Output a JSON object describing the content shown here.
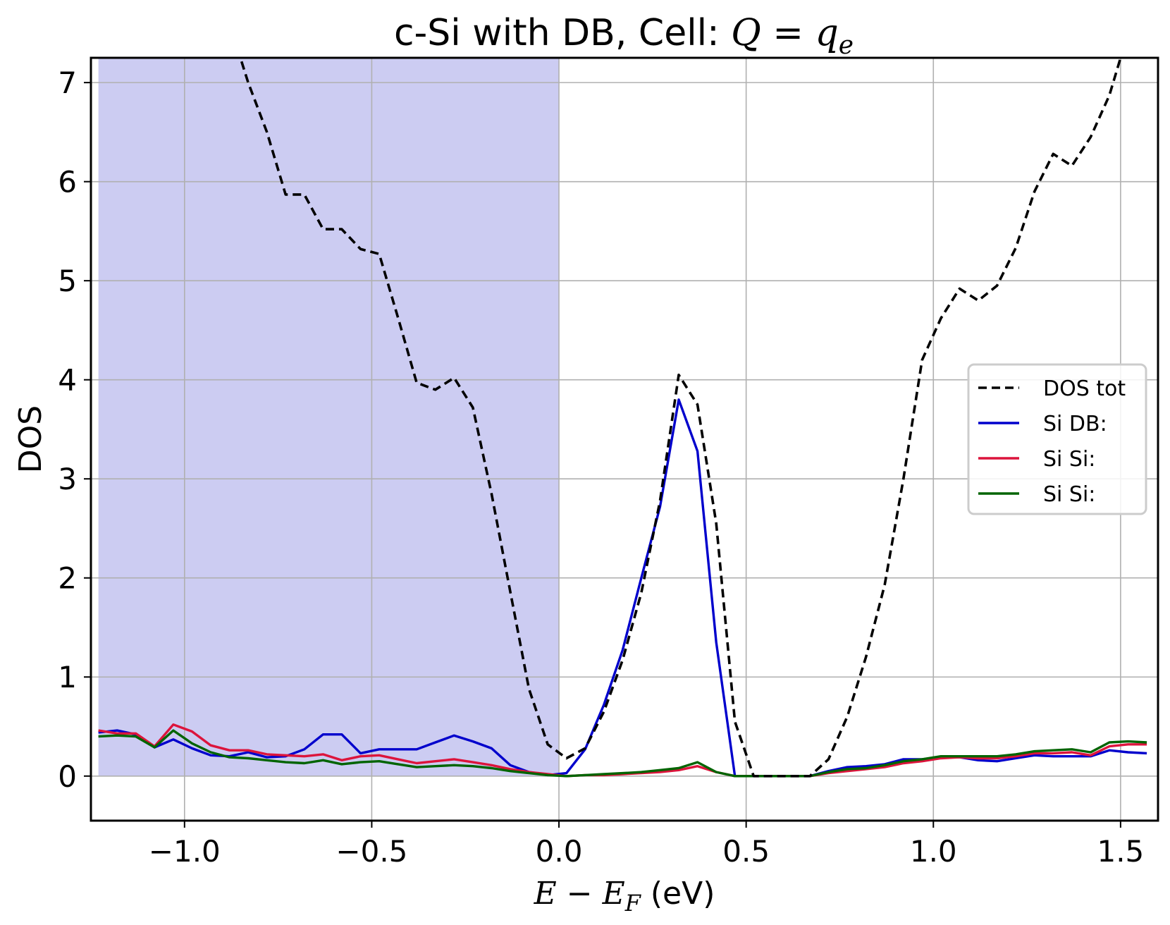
{
  "chart_data": {
    "type": "line",
    "title": {
      "prefix": "c-Si with DB, Cell: ",
      "math_lhs": "Q",
      "math_eq": " = ",
      "math_rhs": "q",
      "math_sub": "e"
    },
    "xlabel": {
      "E": "E",
      "minus": " − ",
      "EF": "E",
      "sub": "F",
      "unit": " (eV)"
    },
    "ylabel": "DOS",
    "xlim": [
      -1.25,
      1.6
    ],
    "ylim": [
      -0.45,
      7.25
    ],
    "x_ticks": [
      -1.0,
      -0.5,
      0.0,
      0.5,
      1.0,
      1.5
    ],
    "x_tick_labels": [
      "−1.0",
      "−0.5",
      "0.0",
      "0.5",
      "1.0",
      "1.5"
    ],
    "y_ticks": [
      0,
      1,
      2,
      3,
      4,
      5,
      6,
      7
    ],
    "y_tick_labels": [
      "0",
      "1",
      "2",
      "3",
      "4",
      "5",
      "6",
      "7"
    ],
    "grid": true,
    "legend_position": "center-right",
    "fill_region": {
      "x_start": -1.23,
      "x_end": 0.0,
      "color": "#ccccf2"
    },
    "series": [
      {
        "name": "DOS tot",
        "color": "#000000",
        "style": "dashed",
        "x": [
          -0.88,
          -0.83,
          -0.78,
          -0.73,
          -0.68,
          -0.63,
          -0.58,
          -0.53,
          -0.48,
          -0.43,
          -0.38,
          -0.33,
          -0.28,
          -0.23,
          -0.18,
          -0.13,
          -0.08,
          -0.03,
          0.02,
          0.07,
          0.12,
          0.17,
          0.22,
          0.27,
          0.32,
          0.37,
          0.42,
          0.47,
          0.52,
          0.57,
          0.62,
          0.67,
          0.72,
          0.77,
          0.82,
          0.87,
          0.92,
          0.97,
          1.02,
          1.07,
          1.12,
          1.17,
          1.22,
          1.27,
          1.32,
          1.37,
          1.42,
          1.47,
          1.5
        ],
        "y": [
          7.6,
          7.0,
          6.5,
          5.87,
          5.87,
          5.52,
          5.52,
          5.32,
          5.27,
          4.63,
          3.97,
          3.9,
          4.02,
          3.72,
          2.85,
          1.86,
          0.88,
          0.32,
          0.18,
          0.28,
          0.65,
          1.17,
          1.85,
          2.78,
          4.05,
          3.75,
          2.55,
          0.55,
          0.0,
          0.0,
          0.0,
          0.0,
          0.17,
          0.6,
          1.2,
          1.93,
          3.0,
          4.2,
          4.62,
          4.92,
          4.8,
          4.95,
          5.33,
          5.9,
          6.28,
          6.16,
          6.45,
          6.87,
          7.25
        ]
      },
      {
        "name": "Si DB:",
        "color": "#0000cc",
        "style": "solid",
        "x": [
          -1.23,
          -1.18,
          -1.13,
          -1.08,
          -1.03,
          -0.98,
          -0.93,
          -0.88,
          -0.83,
          -0.78,
          -0.73,
          -0.68,
          -0.63,
          -0.58,
          -0.53,
          -0.48,
          -0.43,
          -0.38,
          -0.33,
          -0.28,
          -0.23,
          -0.18,
          -0.13,
          -0.08,
          -0.03,
          0.02,
          0.07,
          0.12,
          0.17,
          0.22,
          0.27,
          0.32,
          0.37,
          0.42,
          0.47,
          0.52,
          0.57,
          0.62,
          0.67,
          0.72,
          0.77,
          0.82,
          0.87,
          0.92,
          0.97,
          1.02,
          1.07,
          1.12,
          1.17,
          1.22,
          1.27,
          1.32,
          1.37,
          1.42,
          1.47,
          1.52,
          1.57
        ],
        "y": [
          0.44,
          0.46,
          0.42,
          0.29,
          0.37,
          0.28,
          0.21,
          0.2,
          0.24,
          0.19,
          0.2,
          0.27,
          0.42,
          0.42,
          0.23,
          0.27,
          0.27,
          0.27,
          0.34,
          0.41,
          0.35,
          0.28,
          0.11,
          0.04,
          0.01,
          0.03,
          0.27,
          0.72,
          1.27,
          2.0,
          2.72,
          3.8,
          3.28,
          1.35,
          0.0,
          0.0,
          0.0,
          0.0,
          0.0,
          0.05,
          0.09,
          0.1,
          0.12,
          0.17,
          0.17,
          0.19,
          0.19,
          0.16,
          0.15,
          0.18,
          0.21,
          0.2,
          0.2,
          0.2,
          0.26,
          0.24,
          0.23
        ]
      },
      {
        "name": "Si Si:",
        "color": "#dc143c",
        "style": "solid",
        "x": [
          -1.23,
          -1.18,
          -1.13,
          -1.08,
          -1.03,
          -0.98,
          -0.93,
          -0.88,
          -0.83,
          -0.78,
          -0.73,
          -0.68,
          -0.63,
          -0.58,
          -0.53,
          -0.48,
          -0.43,
          -0.38,
          -0.33,
          -0.28,
          -0.23,
          -0.18,
          -0.13,
          -0.08,
          -0.03,
          0.02,
          0.07,
          0.12,
          0.17,
          0.22,
          0.27,
          0.32,
          0.37,
          0.42,
          0.47,
          0.52,
          0.57,
          0.62,
          0.67,
          0.72,
          0.77,
          0.82,
          0.87,
          0.92,
          0.97,
          1.02,
          1.07,
          1.12,
          1.17,
          1.22,
          1.27,
          1.32,
          1.37,
          1.42,
          1.47,
          1.52,
          1.57
        ],
        "y": [
          0.46,
          0.43,
          0.43,
          0.3,
          0.52,
          0.45,
          0.31,
          0.26,
          0.26,
          0.22,
          0.21,
          0.2,
          0.22,
          0.16,
          0.2,
          0.21,
          0.17,
          0.13,
          0.15,
          0.17,
          0.14,
          0.11,
          0.07,
          0.04,
          0.02,
          0.0,
          0.01,
          0.01,
          0.02,
          0.03,
          0.04,
          0.06,
          0.1,
          0.04,
          0.0,
          0.0,
          0.0,
          0.0,
          0.0,
          0.03,
          0.05,
          0.07,
          0.09,
          0.13,
          0.15,
          0.18,
          0.19,
          0.18,
          0.18,
          0.2,
          0.23,
          0.23,
          0.24,
          0.21,
          0.3,
          0.32,
          0.32
        ]
      },
      {
        "name": "Si Si:",
        "color": "#006400",
        "style": "solid",
        "x": [
          -1.23,
          -1.18,
          -1.13,
          -1.08,
          -1.03,
          -0.98,
          -0.93,
          -0.88,
          -0.83,
          -0.78,
          -0.73,
          -0.68,
          -0.63,
          -0.58,
          -0.53,
          -0.48,
          -0.43,
          -0.38,
          -0.33,
          -0.28,
          -0.23,
          -0.18,
          -0.13,
          -0.08,
          -0.03,
          0.02,
          0.07,
          0.12,
          0.17,
          0.22,
          0.27,
          0.32,
          0.37,
          0.42,
          0.47,
          0.52,
          0.57,
          0.62,
          0.67,
          0.72,
          0.77,
          0.82,
          0.87,
          0.92,
          0.97,
          1.02,
          1.07,
          1.12,
          1.17,
          1.22,
          1.27,
          1.32,
          1.37,
          1.42,
          1.47,
          1.52,
          1.57
        ],
        "y": [
          0.4,
          0.41,
          0.4,
          0.29,
          0.46,
          0.33,
          0.24,
          0.19,
          0.18,
          0.16,
          0.14,
          0.13,
          0.16,
          0.12,
          0.14,
          0.15,
          0.12,
          0.09,
          0.1,
          0.11,
          0.1,
          0.08,
          0.05,
          0.03,
          0.01,
          0.0,
          0.01,
          0.02,
          0.03,
          0.04,
          0.06,
          0.08,
          0.14,
          0.04,
          0.0,
          0.0,
          0.0,
          0.0,
          0.0,
          0.04,
          0.07,
          0.08,
          0.11,
          0.15,
          0.17,
          0.2,
          0.2,
          0.2,
          0.2,
          0.22,
          0.25,
          0.26,
          0.27,
          0.24,
          0.34,
          0.35,
          0.34
        ]
      }
    ]
  }
}
